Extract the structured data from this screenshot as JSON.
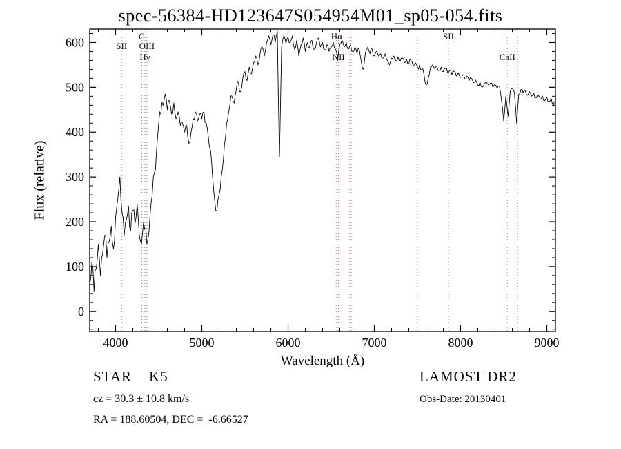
{
  "footer": {
    "class_label": "STAR    K5",
    "survey": "LAMOST DR2",
    "cz": "cz = 30.3 ± 10.8 km/s",
    "obs_date": "Obs-Date: 20130401",
    "coords": "RA = 188.60504, DEC =  -6.66527"
  },
  "chart_data": {
    "type": "line",
    "title": "spec-56384-HD123647S054954M01_sp05-054.fits",
    "xlabel": "Wavelength (Å)",
    "ylabel": "Flux (relative)",
    "xlim": [
      3700,
      9100
    ],
    "ylim": [
      -45,
      630
    ],
    "xticks": [
      4000,
      5000,
      6000,
      7000,
      8000,
      9000
    ],
    "yticks": [
      0,
      100,
      200,
      300,
      400,
      500,
      600
    ],
    "grid": false,
    "line_color": "#000000",
    "x_start": 3700,
    "x_step": 25,
    "values": [
      60,
      110,
      45,
      95,
      150,
      80,
      130,
      170,
      120,
      155,
      190,
      140,
      210,
      250,
      300,
      220,
      170,
      205,
      235,
      180,
      225,
      195,
      240,
      170,
      150,
      200,
      185,
      160,
      215,
      260,
      310,
      360,
      420,
      440,
      460,
      485,
      450,
      470,
      440,
      465,
      430,
      445,
      415,
      420,
      400,
      415,
      375,
      400,
      430,
      445,
      425,
      440,
      430,
      445,
      420,
      390,
      360,
      300,
      245,
      225,
      260,
      300,
      340,
      390,
      430,
      460,
      480,
      465,
      495,
      510,
      490,
      520,
      535,
      515,
      545,
      530,
      555,
      570,
      550,
      575,
      590,
      570,
      600,
      615,
      595,
      618,
      600,
      625,
      345,
      590,
      615,
      598,
      612,
      600,
      615,
      585,
      605,
      570,
      595,
      610,
      580,
      600,
      590,
      605,
      585,
      595,
      610,
      590,
      600,
      585,
      595,
      580,
      590,
      600,
      585,
      560,
      595,
      605,
      590,
      600,
      585,
      595,
      580,
      590,
      575,
      585,
      555,
      540,
      580,
      590,
      575,
      585,
      570,
      580,
      570,
      575,
      565,
      575,
      560,
      550,
      565,
      570,
      560,
      568,
      558,
      565,
      555,
      562,
      552,
      560,
      548,
      555,
      545,
      550,
      540,
      530,
      505,
      520,
      545,
      550,
      542,
      548,
      538,
      545,
      535,
      542,
      532,
      538,
      528,
      535,
      525,
      532,
      522,
      528,
      518,
      525,
      515,
      520,
      510,
      516,
      505,
      512,
      500,
      508,
      512,
      505,
      510,
      500,
      506,
      498,
      503,
      470,
      425,
      480,
      435,
      490,
      498,
      488,
      420,
      485,
      495,
      488,
      492,
      482,
      490,
      480,
      486,
      476,
      483,
      473,
      480,
      470,
      478,
      468,
      475,
      460,
      470
    ],
    "spectral_lines": [
      {
        "label": "SII",
        "wavelength": 4070,
        "row": 1,
        "color": "#999999"
      },
      {
        "label": "G",
        "wavelength": 4305,
        "row": 0,
        "color": "#c46a6a"
      },
      {
        "label": "OIII",
        "wavelength": 4363,
        "row": 1,
        "color": "#c46a6a"
      },
      {
        "label": "Hγ",
        "wavelength": 4340,
        "row": 2,
        "color": "#c46a6a"
      },
      {
        "label": "Hα",
        "wavelength": 6563,
        "row": 0,
        "color": "#c46a6a"
      },
      {
        "label": "NII",
        "wavelength": 6585,
        "row": 2,
        "color": "#c46a6a"
      },
      {
        "label": "",
        "wavelength": 6716,
        "row": -1,
        "color": "#c46a6a"
      },
      {
        "label": "",
        "wavelength": 6731,
        "row": -1,
        "color": "#c46a6a"
      },
      {
        "label": "",
        "wavelength": 7500,
        "row": -1,
        "color": "#9a9a9a"
      },
      {
        "label": "SII",
        "wavelength": 7860,
        "row": 0,
        "color": "#9a9a9a"
      },
      {
        "label": "CaII",
        "wavelength": 8542,
        "row": 2,
        "color": "#9a9a9a"
      },
      {
        "label": "",
        "wavelength": 8662,
        "row": -1,
        "color": "#9a9a9a"
      }
    ]
  }
}
